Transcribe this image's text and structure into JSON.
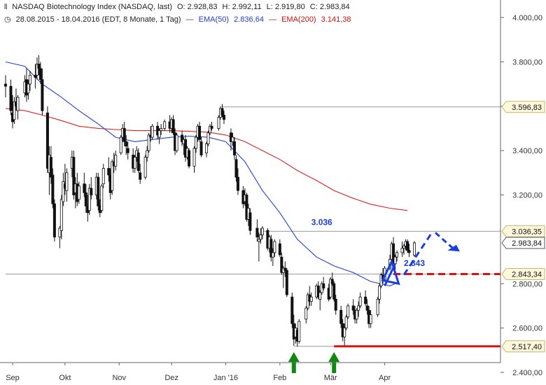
{
  "header": {
    "title": "NASDAQ Biotechnology Index (NASDAQ, last)",
    "open": "O: 2.928,83",
    "high": "H: 2.992,11",
    "low": "L: 2.919,80",
    "close": "C: 2.983,84",
    "range": "28.08.2015 - 18.04.2016 (EDT, 8 Monate, 1 Tag)",
    "ema50_label": "EMA(50)",
    "ema50_value": "2.836,64",
    "ema200_label": "EMA(200)",
    "ema200_value": "3.141,38"
  },
  "colors": {
    "candle": "#111111",
    "ema50": "#2040d8",
    "ema200": "#dd2222",
    "support": "#dd1111",
    "arrow_up": "#118811",
    "projection": "#1a3fe0",
    "grid_line": "#999999",
    "price_label_bg": "#fff8dc",
    "price_label_border": "#c8b66a"
  },
  "chart_data": {
    "type": "candlestick",
    "ylim": [
      2400,
      4000
    ],
    "y_ticks": [
      "4.000,00",
      "3.800,00",
      "3.600,00",
      "3.400,00",
      "3.200,00",
      "2.800,00",
      "2.600,00",
      "2.400,00"
    ],
    "y_tick_values": [
      4000,
      3800,
      3600,
      3400,
      3200,
      2800,
      2600,
      2400
    ],
    "x_ticks": [
      "Sep",
      "Okt",
      "Nov",
      "Dez",
      "Jan '16",
      "Feb",
      "Mär",
      "Apr"
    ],
    "x_tick_dates": [
      "2015-09-01",
      "2015-10-01",
      "2015-11-01",
      "2015-12-01",
      "2016-01-01",
      "2016-02-01",
      "2016-03-01",
      "2016-04-01"
    ],
    "x_range": [
      "2015-08-28",
      "2016-04-18"
    ],
    "horizontal_levels": [
      {
        "label": "3.596,83",
        "value": 3596.83,
        "from": "2015-12-30"
      },
      {
        "label": "3.036,35",
        "value": 3036.35,
        "from": "2016-01-22"
      },
      {
        "label": "2.983,84",
        "value": 2983.84,
        "current": true
      },
      {
        "label": "2.843,34",
        "value": 2843.34,
        "from": "2015-08-28"
      },
      {
        "label": "2.517,40",
        "value": 2517.4,
        "from": "2016-02-09"
      }
    ],
    "annotations": [
      {
        "text": "3.036",
        "x": "2016-02-25",
        "y": 3065
      },
      {
        "text": "2.843",
        "x": "2016-04-18",
        "y": 2880
      }
    ],
    "support_lines": [
      {
        "value": 2843.34,
        "from": "2016-04-06",
        "to": "2016-05-25",
        "style": "dashed"
      },
      {
        "value": 2517.4,
        "from": "2016-03-03",
        "to": "2016-05-25",
        "style": "solid"
      }
    ],
    "up_arrows": [
      "2016-02-09",
      "2016-03-03"
    ],
    "ema50": [
      [
        "2015-08-28",
        3800
      ],
      [
        "2015-09-08",
        3780
      ],
      [
        "2015-09-18",
        3700
      ],
      [
        "2015-09-29",
        3640
      ],
      [
        "2015-10-09",
        3580
      ],
      [
        "2015-10-20",
        3520
      ],
      [
        "2015-10-30",
        3460
      ],
      [
        "2015-11-10",
        3440
      ],
      [
        "2015-11-20",
        3450
      ],
      [
        "2015-12-01",
        3460
      ],
      [
        "2015-12-11",
        3465
      ],
      [
        "2015-12-22",
        3460
      ],
      [
        "2016-01-01",
        3440
      ],
      [
        "2016-01-12",
        3350
      ],
      [
        "2016-01-22",
        3220
      ],
      [
        "2016-02-01",
        3120
      ],
      [
        "2016-02-11",
        3000
      ],
      [
        "2016-02-22",
        2920
      ],
      [
        "2016-03-03",
        2880
      ],
      [
        "2016-03-14",
        2850
      ],
      [
        "2016-03-24",
        2810
      ],
      [
        "2016-04-04",
        2790
      ],
      [
        "2016-04-07",
        2800
      ]
    ],
    "ema200": [
      [
        "2015-08-28",
        3590
      ],
      [
        "2015-09-08",
        3580
      ],
      [
        "2015-09-18",
        3560
      ],
      [
        "2015-09-29",
        3535
      ],
      [
        "2015-10-09",
        3510
      ],
      [
        "2015-10-20",
        3500
      ],
      [
        "2015-10-30",
        3495
      ],
      [
        "2015-11-10",
        3490
      ],
      [
        "2015-11-20",
        3490
      ],
      [
        "2015-12-01",
        3490
      ],
      [
        "2015-12-11",
        3487
      ],
      [
        "2015-12-22",
        3483
      ],
      [
        "2016-01-01",
        3470
      ],
      [
        "2016-01-12",
        3440
      ],
      [
        "2016-01-22",
        3400
      ],
      [
        "2016-02-01",
        3360
      ],
      [
        "2016-02-11",
        3310
      ],
      [
        "2016-02-22",
        3265
      ],
      [
        "2016-03-03",
        3220
      ],
      [
        "2016-03-14",
        3185
      ],
      [
        "2016-03-24",
        3158
      ],
      [
        "2016-04-04",
        3140
      ],
      [
        "2016-04-14",
        3130
      ]
    ],
    "candles": [
      [
        "2015-08-28",
        3700,
        3740,
        3640,
        3690
      ],
      [
        "2015-08-31",
        3690,
        3720,
        3560,
        3580
      ],
      [
        "2015-09-01",
        3570,
        3650,
        3500,
        3530
      ],
      [
        "2015-09-02",
        3540,
        3640,
        3520,
        3620
      ],
      [
        "2015-09-03",
        3620,
        3680,
        3580,
        3600
      ],
      [
        "2015-09-04",
        3580,
        3650,
        3540,
        3640
      ],
      [
        "2015-09-08",
        3660,
        3740,
        3640,
        3710
      ],
      [
        "2015-09-09",
        3720,
        3770,
        3620,
        3650
      ],
      [
        "2015-09-10",
        3660,
        3720,
        3630,
        3700
      ],
      [
        "2015-09-11",
        3700,
        3760,
        3670,
        3740
      ],
      [
        "2015-09-14",
        3740,
        3790,
        3680,
        3730
      ],
      [
        "2015-09-15",
        3740,
        3820,
        3720,
        3790
      ],
      [
        "2015-09-16",
        3790,
        3830,
        3740,
        3770
      ],
      [
        "2015-09-17",
        3770,
        3800,
        3700,
        3720
      ],
      [
        "2015-09-18",
        3720,
        3770,
        3560,
        3580
      ],
      [
        "2015-09-21",
        3570,
        3600,
        3300,
        3320
      ],
      [
        "2015-09-22",
        3300,
        3420,
        3200,
        3380
      ],
      [
        "2015-09-23",
        3370,
        3420,
        3250,
        3280
      ],
      [
        "2015-09-24",
        3290,
        3320,
        3140,
        3160
      ],
      [
        "2015-09-25",
        3160,
        3180,
        2990,
        3010
      ],
      [
        "2015-09-28",
        3010,
        3060,
        2960,
        3050
      ],
      [
        "2015-09-29",
        3040,
        3200,
        3000,
        3180
      ],
      [
        "2015-09-30",
        3170,
        3300,
        3150,
        3260
      ],
      [
        "2015-10-01",
        3250,
        3340,
        3200,
        3230
      ],
      [
        "2015-10-02",
        3220,
        3320,
        3170,
        3300
      ],
      [
        "2015-10-05",
        3320,
        3400,
        3280,
        3370
      ],
      [
        "2015-10-06",
        3370,
        3400,
        3180,
        3200
      ],
      [
        "2015-10-07",
        3210,
        3280,
        3140,
        3250
      ],
      [
        "2015-10-08",
        3250,
        3300,
        3150,
        3170
      ],
      [
        "2015-10-09",
        3180,
        3260,
        3160,
        3240
      ],
      [
        "2015-10-12",
        3250,
        3300,
        3190,
        3210
      ],
      [
        "2015-10-13",
        3210,
        3250,
        3120,
        3150
      ],
      [
        "2015-10-14",
        3150,
        3200,
        3080,
        3120
      ],
      [
        "2015-10-15",
        3130,
        3250,
        3110,
        3230
      ],
      [
        "2015-10-16",
        3230,
        3280,
        3180,
        3200
      ],
      [
        "2015-10-19",
        3200,
        3300,
        3180,
        3280
      ],
      [
        "2015-10-20",
        3280,
        3300,
        3130,
        3150
      ],
      [
        "2015-10-21",
        3150,
        3180,
        3100,
        3120
      ],
      [
        "2015-10-22",
        3130,
        3250,
        3120,
        3240
      ],
      [
        "2015-10-23",
        3250,
        3340,
        3230,
        3320
      ],
      [
        "2015-10-26",
        3320,
        3370,
        3260,
        3290
      ],
      [
        "2015-10-27",
        3290,
        3320,
        3180,
        3210
      ],
      [
        "2015-10-28",
        3220,
        3360,
        3200,
        3350
      ],
      [
        "2015-10-29",
        3350,
        3390,
        3300,
        3330
      ],
      [
        "2015-10-30",
        3330,
        3400,
        3310,
        3380
      ],
      [
        "2015-11-02",
        3390,
        3470,
        3380,
        3460
      ],
      [
        "2015-11-03",
        3460,
        3520,
        3440,
        3500
      ],
      [
        "2015-11-04",
        3500,
        3530,
        3420,
        3440
      ],
      [
        "2015-11-05",
        3440,
        3470,
        3380,
        3420
      ],
      [
        "2015-11-06",
        3410,
        3440,
        3360,
        3390
      ],
      [
        "2015-11-09",
        3380,
        3410,
        3300,
        3320
      ],
      [
        "2015-11-10",
        3320,
        3380,
        3300,
        3370
      ],
      [
        "2015-11-11",
        3370,
        3420,
        3350,
        3400
      ],
      [
        "2015-11-12",
        3390,
        3410,
        3300,
        3310
      ],
      [
        "2015-11-13",
        3300,
        3340,
        3250,
        3270
      ],
      [
        "2015-11-16",
        3280,
        3380,
        3270,
        3370
      ],
      [
        "2015-11-17",
        3370,
        3420,
        3350,
        3400
      ],
      [
        "2015-11-18",
        3400,
        3480,
        3390,
        3470
      ],
      [
        "2015-11-19",
        3470,
        3510,
        3440,
        3460
      ],
      [
        "2015-11-20",
        3460,
        3520,
        3450,
        3510
      ],
      [
        "2015-11-23",
        3510,
        3530,
        3450,
        3470
      ],
      [
        "2015-11-24",
        3460,
        3500,
        3430,
        3490
      ],
      [
        "2015-11-25",
        3490,
        3520,
        3470,
        3500
      ],
      [
        "2015-11-27",
        3500,
        3540,
        3490,
        3530
      ],
      [
        "2015-11-30",
        3530,
        3560,
        3480,
        3500
      ],
      [
        "2015-12-01",
        3500,
        3550,
        3480,
        3540
      ],
      [
        "2015-12-02",
        3540,
        3560,
        3470,
        3480
      ],
      [
        "2015-12-03",
        3480,
        3500,
        3380,
        3400
      ],
      [
        "2015-12-04",
        3400,
        3480,
        3390,
        3470
      ],
      [
        "2015-12-07",
        3470,
        3490,
        3420,
        3440
      ],
      [
        "2015-12-08",
        3430,
        3460,
        3380,
        3450
      ],
      [
        "2015-12-09",
        3450,
        3470,
        3350,
        3370
      ],
      [
        "2015-12-10",
        3370,
        3420,
        3360,
        3410
      ],
      [
        "2015-12-11",
        3400,
        3410,
        3320,
        3330
      ],
      [
        "2015-12-14",
        3330,
        3420,
        3300,
        3410
      ],
      [
        "2015-12-15",
        3410,
        3470,
        3390,
        3460
      ],
      [
        "2015-12-16",
        3460,
        3520,
        3440,
        3510
      ],
      [
        "2015-12-17",
        3510,
        3530,
        3440,
        3450
      ],
      [
        "2015-12-18",
        3440,
        3460,
        3370,
        3380
      ],
      [
        "2015-12-21",
        3390,
        3440,
        3370,
        3430
      ],
      [
        "2015-12-22",
        3430,
        3490,
        3420,
        3480
      ],
      [
        "2015-12-23",
        3480,
        3520,
        3470,
        3510
      ],
      [
        "2015-12-24",
        3510,
        3530,
        3490,
        3500
      ],
      [
        "2015-12-28",
        3500,
        3560,
        3490,
        3550
      ],
      [
        "2015-12-29",
        3550,
        3600,
        3540,
        3590
      ],
      [
        "2015-12-30",
        3590,
        3610,
        3550,
        3560
      ],
      [
        "2015-12-31",
        3560,
        3580,
        3520,
        3540
      ],
      [
        "2016-01-04",
        3480,
        3500,
        3400,
        3440
      ],
      [
        "2016-01-05",
        3440,
        3480,
        3420,
        3460
      ],
      [
        "2016-01-06",
        3440,
        3460,
        3360,
        3380
      ],
      [
        "2016-01-07",
        3360,
        3380,
        3260,
        3280
      ],
      [
        "2016-01-08",
        3280,
        3320,
        3200,
        3220
      ],
      [
        "2016-01-11",
        3220,
        3240,
        3140,
        3160
      ],
      [
        "2016-01-12",
        3170,
        3230,
        3150,
        3200
      ],
      [
        "2016-01-13",
        3200,
        3210,
        3080,
        3090
      ],
      [
        "2016-01-14",
        3090,
        3160,
        3060,
        3140
      ],
      [
        "2016-01-15",
        3120,
        3140,
        3020,
        3040
      ],
      [
        "2016-01-19",
        3050,
        3090,
        2990,
        3010
      ],
      [
        "2016-01-20",
        2990,
        3030,
        2900,
        3000
      ],
      [
        "2016-01-21",
        3000,
        3050,
        2980,
        3020
      ],
      [
        "2016-01-22",
        3020,
        3060,
        3000,
        3050
      ],
      [
        "2016-01-25",
        3040,
        3050,
        2950,
        2960
      ],
      [
        "2016-01-26",
        2960,
        3020,
        2940,
        3010
      ],
      [
        "2016-01-27",
        3000,
        3020,
        2900,
        2920
      ],
      [
        "2016-01-28",
        2920,
        2960,
        2880,
        2940
      ],
      [
        "2016-01-29",
        2940,
        3000,
        2920,
        2990
      ],
      [
        "2016-02-01",
        2980,
        3000,
        2920,
        2930
      ],
      [
        "2016-02-02",
        2920,
        2940,
        2840,
        2850
      ],
      [
        "2016-02-03",
        2850,
        2880,
        2780,
        2870
      ],
      [
        "2016-02-04",
        2870,
        2900,
        2830,
        2860
      ],
      [
        "2016-02-05",
        2860,
        2870,
        2740,
        2750
      ],
      [
        "2016-02-08",
        2740,
        2760,
        2600,
        2620
      ],
      [
        "2016-02-09",
        2620,
        2660,
        2520,
        2550
      ],
      [
        "2016-02-10",
        2560,
        2620,
        2530,
        2600
      ],
      [
        "2016-02-11",
        2590,
        2600,
        2517,
        2540
      ],
      [
        "2016-02-12",
        2540,
        2640,
        2530,
        2630
      ],
      [
        "2016-02-16",
        2640,
        2700,
        2620,
        2690
      ],
      [
        "2016-02-17",
        2690,
        2760,
        2680,
        2750
      ],
      [
        "2016-02-18",
        2750,
        2790,
        2700,
        2720
      ],
      [
        "2016-02-19",
        2720,
        2760,
        2700,
        2740
      ],
      [
        "2016-02-22",
        2740,
        2800,
        2730,
        2790
      ],
      [
        "2016-02-23",
        2790,
        2810,
        2730,
        2740
      ],
      [
        "2016-02-24",
        2730,
        2770,
        2680,
        2760
      ],
      [
        "2016-02-25",
        2760,
        2810,
        2750,
        2800
      ],
      [
        "2016-02-26",
        2800,
        2830,
        2770,
        2780
      ],
      [
        "2016-02-29",
        2780,
        2800,
        2720,
        2730
      ],
      [
        "2016-03-01",
        2740,
        2830,
        2730,
        2820
      ],
      [
        "2016-03-02",
        2820,
        2850,
        2790,
        2800
      ],
      [
        "2016-03-03",
        2800,
        2810,
        2720,
        2730
      ],
      [
        "2016-03-04",
        2730,
        2750,
        2660,
        2680
      ],
      [
        "2016-03-07",
        2680,
        2700,
        2600,
        2620
      ],
      [
        "2016-03-08",
        2620,
        2640,
        2540,
        2560
      ],
      [
        "2016-03-09",
        2560,
        2620,
        2520,
        2600
      ],
      [
        "2016-03-10",
        2600,
        2660,
        2590,
        2650
      ],
      [
        "2016-03-11",
        2650,
        2710,
        2640,
        2700
      ],
      [
        "2016-03-14",
        2700,
        2730,
        2660,
        2680
      ],
      [
        "2016-03-15",
        2680,
        2700,
        2620,
        2640
      ],
      [
        "2016-03-16",
        2640,
        2690,
        2620,
        2680
      ],
      [
        "2016-03-17",
        2680,
        2720,
        2650,
        2700
      ],
      [
        "2016-03-18",
        2700,
        2760,
        2690,
        2740
      ],
      [
        "2016-03-21",
        2740,
        2770,
        2700,
        2710
      ],
      [
        "2016-03-22",
        2700,
        2730,
        2660,
        2680
      ],
      [
        "2016-03-23",
        2680,
        2700,
        2600,
        2620
      ],
      [
        "2016-03-24",
        2620,
        2680,
        2600,
        2660
      ],
      [
        "2016-03-28",
        2660,
        2740,
        2650,
        2730
      ],
      [
        "2016-03-29",
        2730,
        2800,
        2710,
        2790
      ],
      [
        "2016-03-30",
        2790,
        2850,
        2780,
        2840
      ],
      [
        "2016-03-31",
        2840,
        2870,
        2800,
        2820
      ],
      [
        "2016-04-01",
        2820,
        2880,
        2810,
        2870
      ],
      [
        "2016-04-04",
        2870,
        2930,
        2860,
        2910
      ],
      [
        "2016-04-05",
        2910,
        2990,
        2900,
        2980
      ],
      [
        "2016-04-06",
        2980,
        3010,
        2880,
        2890
      ],
      [
        "2016-04-07",
        2890,
        2930,
        2860,
        2920
      ],
      [
        "2016-04-08",
        2920,
        2950,
        2900,
        2940
      ],
      [
        "2016-04-11",
        2940,
        2990,
        2920,
        2960
      ],
      [
        "2016-04-12",
        2960,
        2980,
        2930,
        2970
      ],
      [
        "2016-04-13",
        2970,
        3000,
        2950,
        2990
      ],
      [
        "2016-04-14",
        2990,
        3000,
        2940,
        2950
      ],
      [
        "2016-04-15",
        2950,
        2980,
        2920,
        2940
      ],
      [
        "2016-04-18",
        2929,
        2992,
        2920,
        2984
      ]
    ]
  }
}
